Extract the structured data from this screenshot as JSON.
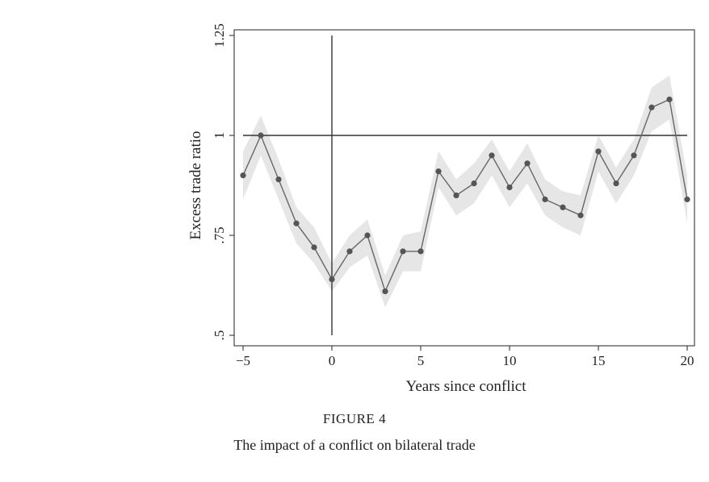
{
  "chart_data": {
    "type": "line",
    "xlabel": "Years since conflict",
    "ylabel": "Excess trade ratio",
    "xlim": [
      -5,
      20
    ],
    "ylim": [
      0.5,
      1.25
    ],
    "x_ticks": [
      -5,
      0,
      5,
      10,
      15,
      20
    ],
    "x_tick_labels": [
      "−5",
      "0",
      "5",
      "10",
      "15",
      "20"
    ],
    "y_ticks": [
      0.5,
      0.75,
      1,
      1.25
    ],
    "y_tick_labels": [
      ".5",
      ".75",
      "1",
      "1.25"
    ],
    "reference_lines": {
      "horizontal": 1,
      "vertical": 0
    },
    "grid": false,
    "series": [
      {
        "x": [
          -5,
          -4,
          -3,
          -2,
          -1,
          0,
          1,
          2,
          3,
          4,
          5,
          6,
          7,
          8,
          9,
          10,
          11,
          12,
          13,
          14,
          15,
          16,
          17,
          18,
          19,
          20
        ],
        "values": [
          0.9,
          1.0,
          0.89,
          0.78,
          0.72,
          0.64,
          0.71,
          0.75,
          0.61,
          0.71,
          0.71,
          0.91,
          0.85,
          0.88,
          0.95,
          0.87,
          0.93,
          0.84,
          0.82,
          0.8,
          0.96,
          0.88,
          0.95,
          1.07,
          1.09,
          0.84
        ],
        "ci_lower": [
          0.84,
          0.95,
          0.84,
          0.73,
          0.68,
          0.61,
          0.67,
          0.7,
          0.57,
          0.66,
          0.66,
          0.87,
          0.8,
          0.83,
          0.9,
          0.82,
          0.88,
          0.8,
          0.77,
          0.75,
          0.91,
          0.83,
          0.9,
          1.01,
          1.04,
          0.78
        ],
        "ci_upper": [
          0.96,
          1.05,
          0.94,
          0.82,
          0.77,
          0.68,
          0.75,
          0.79,
          0.65,
          0.75,
          0.76,
          0.96,
          0.89,
          0.93,
          0.99,
          0.91,
          0.98,
          0.89,
          0.86,
          0.85,
          1.0,
          0.92,
          0.99,
          1.12,
          1.15,
          0.9
        ]
      }
    ]
  },
  "caption": {
    "figure_number": "FIGURE 4",
    "title": "The impact of a conflict on bilateral trade"
  },
  "colors": {
    "line": "#666666",
    "marker": "#555555",
    "band": "#e6e6e6",
    "axis": "#222222",
    "reference": "#333333"
  }
}
